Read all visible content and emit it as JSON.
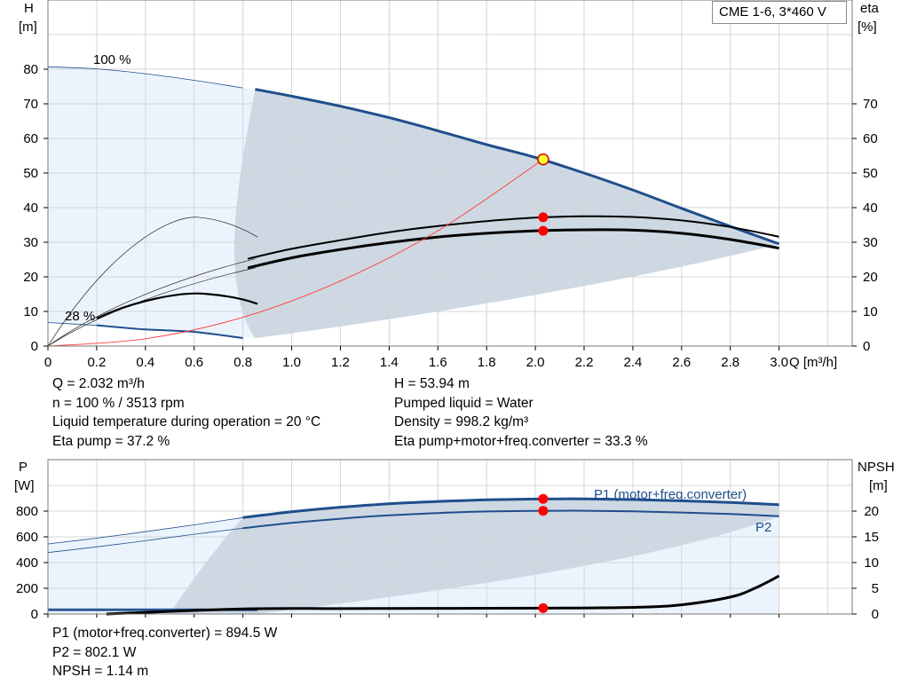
{
  "model": "CME 1-6, 3*460 V",
  "top_chart": {
    "y_left_title": [
      "H",
      "[m]"
    ],
    "y_right_title": [
      "eta",
      "[%]"
    ],
    "x_title": "Q [m³/h]",
    "x_ticks": [
      "0",
      "0.2",
      "0.4",
      "0.6",
      "0.8",
      "1.0",
      "1.2",
      "1.4",
      "1.6",
      "1.8",
      "2.0",
      "2.2",
      "2.4",
      "2.6",
      "2.8",
      "3.0"
    ],
    "y_left_ticks": [
      "0",
      "10",
      "20",
      "30",
      "40",
      "50",
      "60",
      "70",
      "80"
    ],
    "y_right_ticks": [
      "0",
      "10",
      "20",
      "30",
      "40",
      "50",
      "60",
      "70"
    ],
    "speed_max_label": "100 %",
    "speed_min_label": "28 %"
  },
  "info_top": {
    "left": [
      "Q = 2.032 m³/h",
      "n = 100 % / 3513 rpm",
      "Liquid temperature during operation = 20 °C",
      "Eta pump = 37.2 %"
    ],
    "right": [
      "H = 53.94 m",
      "Pumped liquid = Water",
      "Density = 998.2 kg/m³",
      "Eta pump+motor+freq.converter = 33.3 %"
    ]
  },
  "bottom_chart": {
    "y_left_title": [
      "P",
      "[W]"
    ],
    "y_right_title": [
      "NPSH",
      "[m]"
    ],
    "y_left_ticks": [
      "0",
      "200",
      "400",
      "600",
      "800"
    ],
    "y_right_ticks": [
      "0",
      "5",
      "10",
      "15",
      "20"
    ],
    "p1_label": "P1 (motor+freq.converter)",
    "p2_label": "P2"
  },
  "info_bottom": [
    "P1 (motor+freq.converter) = 894.5 W",
    "P2 = 802.1 W",
    "NPSH = 1.14 m"
  ],
  "colors": {
    "curve_blue": "#1f4e8c",
    "area_dark": "#cdd8e3",
    "area_light": "#ebf4fd",
    "duty_point": "#ff0000",
    "duty_point_fill": "#ffff33",
    "system_curve": "#ff3b3b",
    "grid": "#d4d4d4"
  },
  "chart_data": [
    {
      "type": "line",
      "xlabel": "Q [m³/h]",
      "ylabel": "H [m]",
      "y2label": "eta [%]",
      "xlim": [
        0,
        3.0
      ],
      "ylim": [
        0,
        80
      ],
      "y2lim": [
        0,
        80
      ],
      "grid": true,
      "duty_point": {
        "Q": 2.032,
        "H": 53.94,
        "eta_pump": 37.2,
        "eta_total": 33.3
      },
      "series": [
        {
          "name": "100 %",
          "axis": "H",
          "x": [
            0,
            0.2,
            0.4,
            0.6,
            0.8,
            1.0,
            1.2,
            1.4,
            1.6,
            1.8,
            2.0,
            2.2,
            2.4,
            2.6,
            2.8,
            3.0
          ],
          "values": [
            80.7,
            80.1,
            78.7,
            76.8,
            74.6,
            72.2,
            69.3,
            66.0,
            62.2,
            58.2,
            54.5,
            50.0,
            45.1,
            39.8,
            34.6,
            29.5
          ]
        },
        {
          "name": "28 %",
          "axis": "H",
          "x": [
            0,
            0.2,
            0.4,
            0.6,
            0.8
          ],
          "values": [
            6.8,
            6.0,
            4.8,
            4.1,
            2.3
          ]
        },
        {
          "name": "Eta pump",
          "axis": "eta",
          "x": [
            0.82,
            1.0,
            1.2,
            1.4,
            1.6,
            1.8,
            2.0,
            2.2,
            2.4,
            2.6,
            2.8,
            3.0
          ],
          "values": [
            25.2,
            28.1,
            30.6,
            32.9,
            34.7,
            36.1,
            37.1,
            37.5,
            37.3,
            36.3,
            34.4,
            31.6
          ]
        },
        {
          "name": "Eta pump+motor+freq.converter",
          "axis": "eta",
          "x": [
            0.82,
            1.0,
            1.2,
            1.4,
            1.6,
            1.8,
            2.0,
            2.2,
            2.4,
            2.6,
            2.8,
            3.0
          ],
          "values": [
            22.6,
            25.5,
            27.9,
            29.9,
            31.5,
            32.6,
            33.3,
            33.6,
            33.5,
            32.6,
            30.8,
            28.3
          ]
        },
        {
          "name": "System curve",
          "axis": "H",
          "x": [
            0,
            0.4,
            0.8,
            1.2,
            1.6,
            2.032
          ],
          "values": [
            0,
            2.1,
            8.3,
            18.8,
            33.3,
            53.94
          ]
        }
      ]
    },
    {
      "type": "line",
      "xlabel": "Q [m³/h]",
      "ylabel": "P [W]",
      "y2label": "NPSH [m]",
      "xlim": [
        0,
        3.0
      ],
      "ylim": [
        0,
        1000
      ],
      "y2lim": [
        0,
        25
      ],
      "grid": true,
      "duty_point": {
        "Q": 2.032,
        "P1": 894.5,
        "P2": 802.1,
        "NPSH": 1.14
      },
      "series": [
        {
          "name": "P1 (motor+freq.converter)",
          "axis": "P",
          "x": [
            0,
            0.2,
            0.4,
            0.6,
            0.8,
            1.0,
            1.2,
            1.4,
            1.6,
            1.8,
            2.0,
            2.2,
            2.4,
            2.6,
            2.8,
            3.0
          ],
          "values": [
            545,
            590,
            640,
            693,
            750,
            795,
            830,
            857,
            875,
            888,
            894,
            895,
            890,
            880,
            867,
            850
          ]
        },
        {
          "name": "P2",
          "axis": "P",
          "x": [
            0,
            0.2,
            0.4,
            0.6,
            0.8,
            1.0,
            1.2,
            1.4,
            1.6,
            1.8,
            2.0,
            2.2,
            2.4,
            2.6,
            2.8,
            3.0
          ],
          "values": [
            478,
            522,
            570,
            620,
            667,
            708,
            741,
            767,
            785,
            797,
            802,
            803,
            798,
            789,
            777,
            760
          ]
        },
        {
          "name": "NPSH",
          "axis": "NPSH",
          "x": [
            0.24,
            0.8,
            1.2,
            1.6,
            2.032,
            2.4,
            2.6,
            2.8,
            2.9,
            3.0
          ],
          "values": [
            0.0,
            1.0,
            1.06,
            1.1,
            1.14,
            1.3,
            1.8,
            3.3,
            5.0,
            7.4
          ]
        }
      ]
    }
  ]
}
